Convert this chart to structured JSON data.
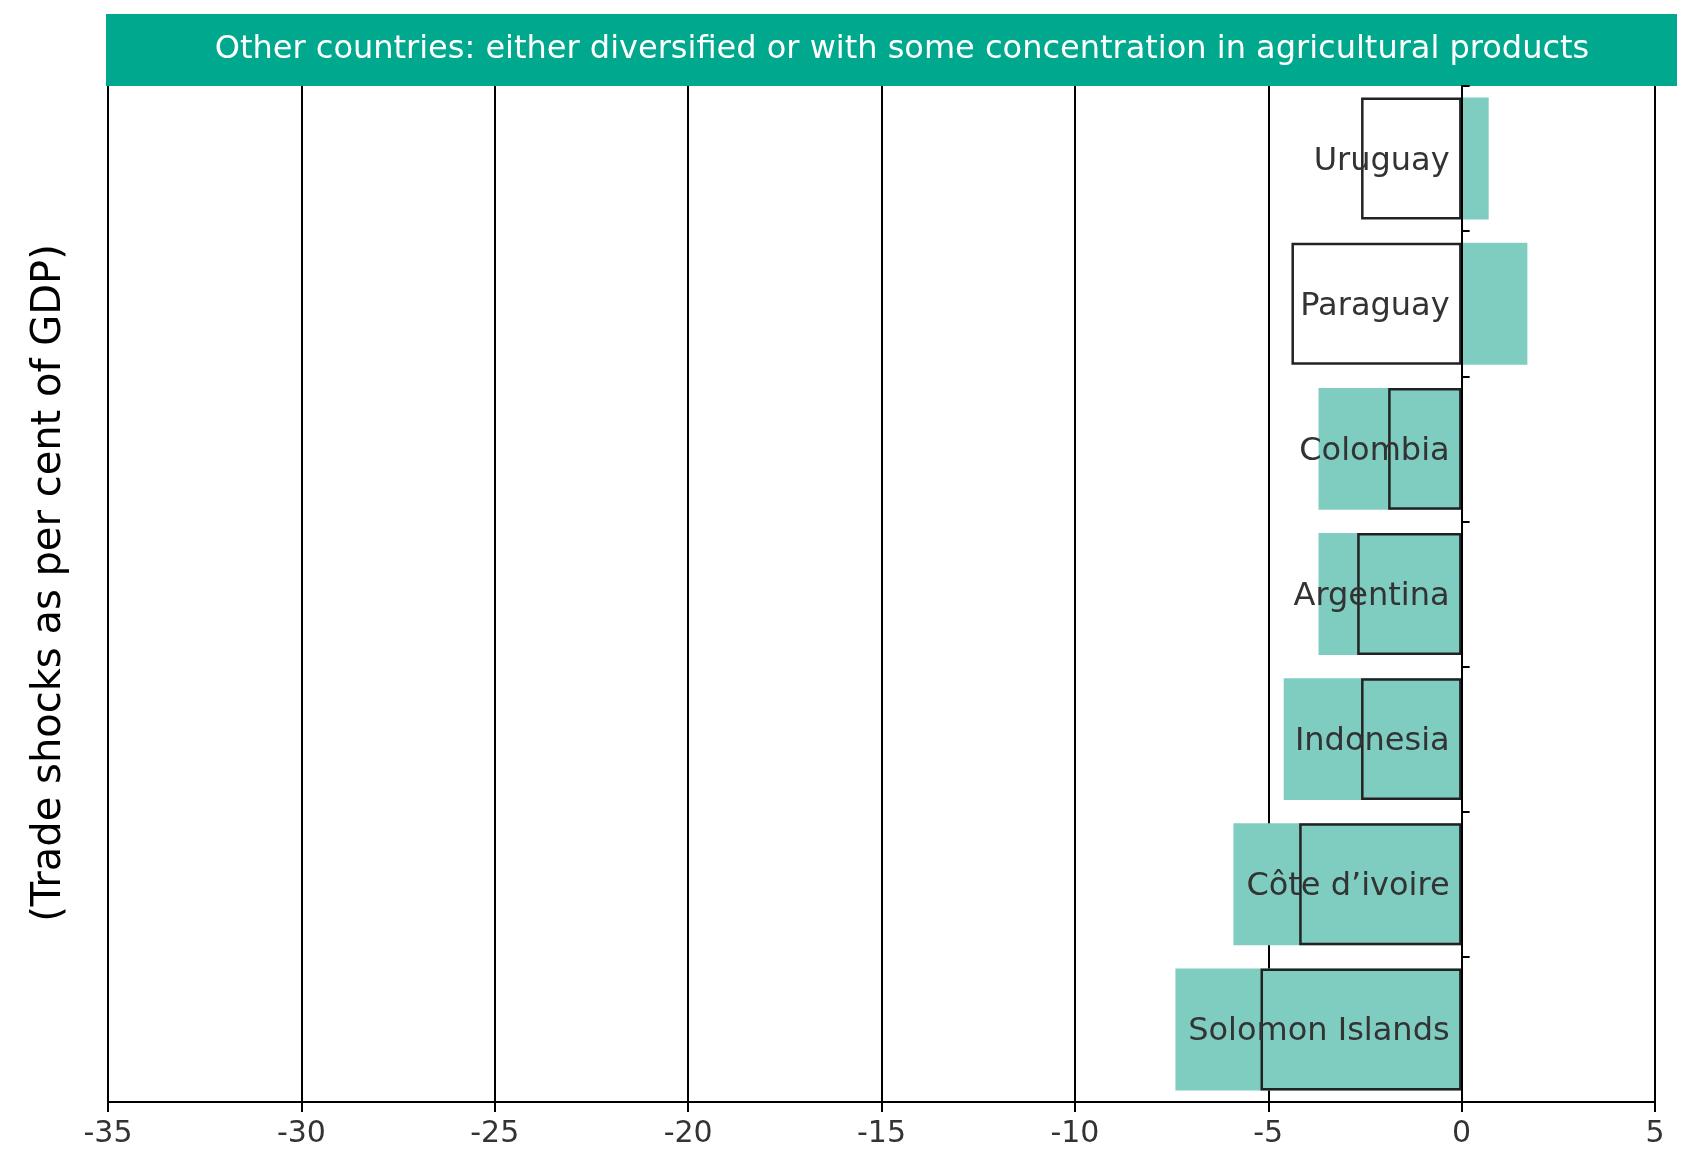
{
  "chart_data": {
    "type": "bar",
    "orientation": "horizontal",
    "title": "Other countries: either diversified or with some concentration in agricultural products",
    "ylabel": "(Trade shocks as per cent of GDP)",
    "categories": [
      "Uruguay",
      "Paraguay",
      "Colombia",
      "Argentina",
      "Indonesia",
      "Côte d’ivoire",
      "Solomon Islands"
    ],
    "series": [
      {
        "color": "#222222",
        "values": [
          -2.6,
          -4.4,
          -1.9,
          -2.7,
          -2.6,
          -4.2,
          -5.2
        ]
      },
      {
        "color": "#7fcdc1",
        "values": [
          0.7,
          1.7,
          -3.7,
          -3.7,
          -4.6,
          -5.9,
          -7.4
        ]
      }
    ],
    "xlim": [
      -35,
      5
    ],
    "xticks": [
      -35,
      -30,
      -25,
      -20,
      -15,
      -10,
      -5,
      0,
      5
    ],
    "grid": "x"
  }
}
